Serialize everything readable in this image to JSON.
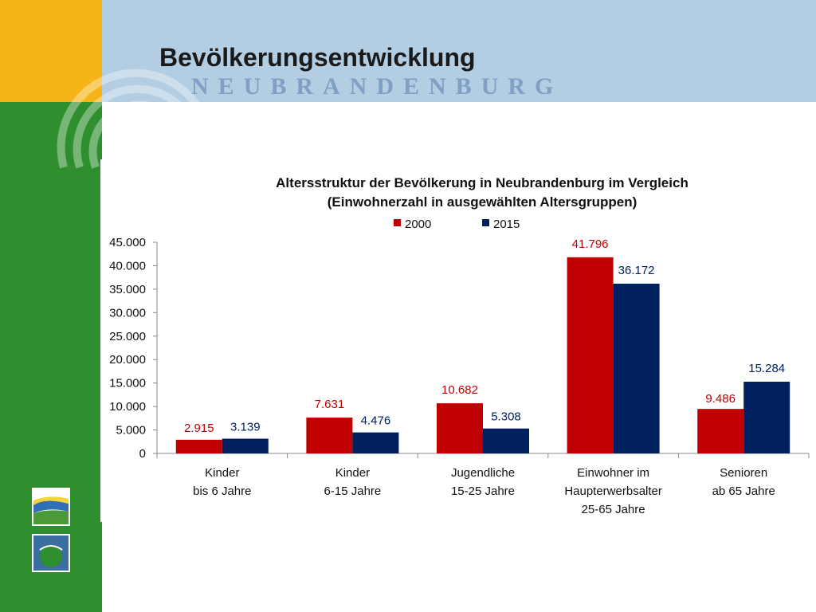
{
  "slide": {
    "title": "Bevölkerungsentwicklung",
    "city": "NEUBRANDENBURG"
  },
  "colors": {
    "orange": "#f7b418",
    "green": "#2f8f2e",
    "blue_band": "#b3cde2",
    "series_2000": "#c00000",
    "series_2015": "#002060"
  },
  "chart_data": {
    "type": "bar",
    "title_line1": "Altersstruktur der Bevölkerung in Neubrandenburg im Vergleich",
    "title_line2": "(Einwohnerzahl in ausgewählten Altersgruppen)",
    "categories": [
      [
        "Kinder",
        "bis 6 Jahre"
      ],
      [
        "Kinder",
        "6-15 Jahre"
      ],
      [
        "Jugendliche",
        "15-25 Jahre"
      ],
      [
        "Einwohner im",
        "Haupterwerbsalter",
        "25-65 Jahre"
      ],
      [
        "Senioren",
        "ab 65 Jahre"
      ]
    ],
    "series": [
      {
        "name": "2000",
        "color": "#c00000",
        "values": [
          2915,
          7631,
          10682,
          41796,
          9486
        ],
        "labels": [
          "2.915",
          "7.631",
          "10.682",
          "41.796",
          "9.486"
        ]
      },
      {
        "name": "2015",
        "color": "#002060",
        "values": [
          3139,
          4476,
          5308,
          36172,
          15284
        ],
        "labels": [
          "3.139",
          "4.476",
          "5.308",
          "36.172",
          "15.284"
        ]
      }
    ],
    "ylim": [
      0,
      45000
    ],
    "yticks": [
      "0",
      "5.000",
      "10.000",
      "15.000",
      "20.000",
      "25.000",
      "30.000",
      "35.000",
      "40.000",
      "45.000"
    ],
    "legend_position": "top",
    "grid": false
  }
}
